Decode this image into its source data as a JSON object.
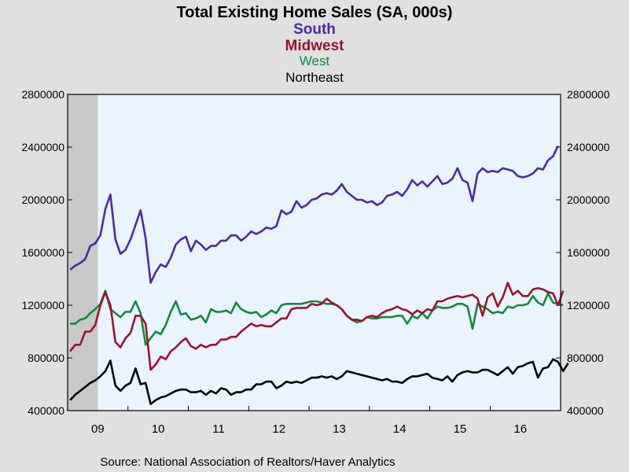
{
  "titles": {
    "main": "Total Existing Home Sales (SA, 000s)",
    "lines": [
      {
        "text": "South",
        "color": "#4b2aa8"
      },
      {
        "text": "Midwest",
        "color": "#a0112e"
      },
      {
        "text": "West",
        "color": "#118a3a"
      },
      {
        "text": "Northeast",
        "color": "#000000"
      }
    ]
  },
  "source": "Source:  National Association of Realtors/Haver Analytics",
  "chart_data": {
    "type": "line",
    "frequency": "monthly",
    "x_start": "2009-01",
    "x_tick_labels": [
      "09",
      "10",
      "11",
      "12",
      "13",
      "14",
      "15",
      "16"
    ],
    "ylim": [
      400000,
      2800000
    ],
    "y_ticks": [
      400000,
      800000,
      1200000,
      1600000,
      2000000,
      2400000,
      2800000
    ],
    "y_tick_labels": [
      "400000",
      "800000",
      "1200000",
      "1600000",
      "2000000",
      "2400000",
      "2800000"
    ],
    "recession_shading": {
      "from": "2009-01",
      "to": "2009-06",
      "color": "#c8c8c8"
    },
    "plot_background": "#eaf4fe",
    "series": [
      {
        "name": "South",
        "color": "#4b2aa8",
        "values": [
          1470000,
          1500000,
          1520000,
          1550000,
          1650000,
          1670000,
          1730000,
          1930000,
          2040000,
          1700000,
          1590000,
          1620000,
          1700000,
          1810000,
          1920000,
          1710000,
          1370000,
          1450000,
          1510000,
          1490000,
          1560000,
          1660000,
          1700000,
          1720000,
          1610000,
          1690000,
          1660000,
          1620000,
          1650000,
          1650000,
          1690000,
          1690000,
          1730000,
          1730000,
          1690000,
          1720000,
          1760000,
          1740000,
          1760000,
          1790000,
          1780000,
          1800000,
          1920000,
          1890000,
          1910000,
          1990000,
          1940000,
          1960000,
          2000000,
          2010000,
          2040000,
          2050000,
          2040000,
          2070000,
          2120000,
          2060000,
          2030000,
          2000000,
          2000000,
          1980000,
          1990000,
          1960000,
          1980000,
          2030000,
          2040000,
          2060000,
          2030000,
          2080000,
          2150000,
          2110000,
          2140000,
          2100000,
          2140000,
          2180000,
          2120000,
          2130000,
          2160000,
          2240000,
          2150000,
          2130000,
          1990000,
          2200000,
          2240000,
          2210000,
          2220000,
          2210000,
          2240000,
          2230000,
          2220000,
          2180000,
          2170000,
          2180000,
          2200000,
          2240000,
          2230000,
          2300000,
          2330000,
          2410000
        ]
      },
      {
        "name": "Midwest",
        "color": "#a0112e",
        "values": [
          850000,
          900000,
          900000,
          1000000,
          1000000,
          1050000,
          1200000,
          1300000,
          1200000,
          920000,
          880000,
          950000,
          990000,
          1120000,
          1120000,
          1060000,
          710000,
          750000,
          810000,
          790000,
          850000,
          880000,
          920000,
          950000,
          890000,
          870000,
          900000,
          880000,
          900000,
          900000,
          940000,
          940000,
          960000,
          960000,
          1000000,
          1030000,
          1060000,
          1040000,
          1050000,
          1040000,
          1040000,
          1070000,
          1100000,
          1100000,
          1170000,
          1180000,
          1180000,
          1180000,
          1210000,
          1200000,
          1210000,
          1250000,
          1220000,
          1200000,
          1170000,
          1120000,
          1090000,
          1090000,
          1080000,
          1110000,
          1120000,
          1110000,
          1140000,
          1160000,
          1170000,
          1190000,
          1170000,
          1160000,
          1130000,
          1160000,
          1140000,
          1170000,
          1160000,
          1230000,
          1230000,
          1250000,
          1260000,
          1270000,
          1260000,
          1270000,
          1280000,
          1250000,
          1120000,
          1260000,
          1290000,
          1190000,
          1260000,
          1370000,
          1280000,
          1310000,
          1270000,
          1270000,
          1320000,
          1330000,
          1320000,
          1300000,
          1290000,
          1200000,
          1310000
        ]
      },
      {
        "name": "West",
        "color": "#118a3a",
        "values": [
          1060000,
          1060000,
          1090000,
          1100000,
          1140000,
          1170000,
          1210000,
          1310000,
          1170000,
          1140000,
          1110000,
          1150000,
          1150000,
          1230000,
          1140000,
          900000,
          950000,
          1000000,
          980000,
          1050000,
          1150000,
          1230000,
          1130000,
          1140000,
          1090000,
          1100000,
          1120000,
          1070000,
          1170000,
          1150000,
          1150000,
          1160000,
          1140000,
          1220000,
          1170000,
          1150000,
          1140000,
          1150000,
          1110000,
          1130000,
          1160000,
          1140000,
          1200000,
          1210000,
          1210000,
          1210000,
          1210000,
          1220000,
          1230000,
          1230000,
          1220000,
          1210000,
          1210000,
          1200000,
          1170000,
          1120000,
          1090000,
          1070000,
          1080000,
          1110000,
          1100000,
          1100000,
          1110000,
          1110000,
          1110000,
          1120000,
          1120000,
          1060000,
          1120000,
          1100000,
          1140000,
          1100000,
          1160000,
          1190000,
          1180000,
          1180000,
          1190000,
          1210000,
          1210000,
          1190000,
          1020000,
          1210000,
          1190000,
          1170000,
          1140000,
          1150000,
          1140000,
          1190000,
          1180000,
          1200000,
          1200000,
          1210000,
          1270000,
          1220000,
          1200000,
          1290000,
          1220000,
          1210000,
          1200000
        ]
      },
      {
        "name": "Northeast",
        "color": "#000000",
        "values": [
          480000,
          520000,
          550000,
          580000,
          610000,
          630000,
          660000,
          700000,
          780000,
          590000,
          550000,
          590000,
          610000,
          720000,
          600000,
          610000,
          450000,
          480000,
          500000,
          510000,
          530000,
          550000,
          560000,
          560000,
          540000,
          540000,
          550000,
          520000,
          550000,
          530000,
          570000,
          560000,
          520000,
          540000,
          540000,
          560000,
          560000,
          600000,
          600000,
          620000,
          620000,
          570000,
          590000,
          620000,
          610000,
          620000,
          610000,
          630000,
          650000,
          650000,
          660000,
          650000,
          660000,
          640000,
          660000,
          700000,
          690000,
          680000,
          670000,
          660000,
          650000,
          640000,
          630000,
          640000,
          620000,
          620000,
          610000,
          640000,
          660000,
          660000,
          670000,
          680000,
          650000,
          640000,
          630000,
          660000,
          620000,
          670000,
          690000,
          700000,
          690000,
          690000,
          710000,
          710000,
          690000,
          670000,
          700000,
          730000,
          680000,
          730000,
          740000,
          760000,
          770000,
          650000,
          720000,
          730000,
          790000,
          770000,
          700000,
          760000
        ]
      }
    ]
  }
}
